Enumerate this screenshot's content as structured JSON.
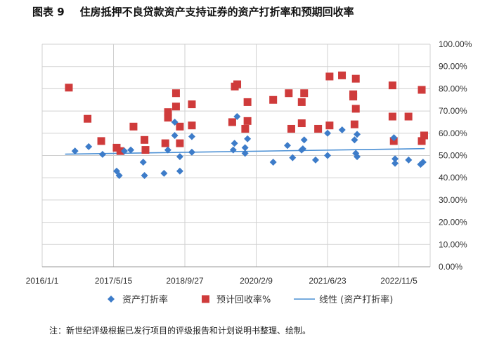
{
  "figure": {
    "label": "图表 9",
    "title": "住房抵押不良贷款资产支持证券的资产打折率和预期回收率",
    "note": "注：新世纪评级根据已发行项目的评级报告和计划说明书整理、绘制。"
  },
  "colors": {
    "discount": "#3d7cc9",
    "recovery": "#cf3b3b",
    "trend": "#4a8fd4",
    "grid": "#d0d0d0",
    "axis": "#9a9a9a"
  },
  "chart_data": {
    "type": "scatter",
    "x_axis": {
      "type": "date",
      "range": [
        "2016-01-01",
        "2023-06-12"
      ],
      "tick_labels": [
        "2016/1/1",
        "2017/5/15",
        "2018/9/27",
        "2020/2/9",
        "2021/6/23",
        "2022/11/5"
      ],
      "tick_dates": [
        "2016-01-01",
        "2017-05-15",
        "2018-09-27",
        "2020-02-09",
        "2021-06-23",
        "2022-11-05"
      ]
    },
    "y_axis": {
      "range": [
        0,
        1
      ],
      "position": "right",
      "tick_values": [
        0,
        0.1,
        0.2,
        0.3,
        0.4,
        0.5,
        0.6,
        0.7,
        0.8,
        0.9,
        1.0
      ],
      "tick_labels": [
        "0.00%",
        "10.00%",
        "20.00%",
        "30.00%",
        "40.00%",
        "50.00%",
        "60.00%",
        "70.00%",
        "80.00%",
        "90.00%",
        "100.00%"
      ]
    },
    "grid": true,
    "legend_position": "bottom",
    "series": [
      {
        "name": "资产打折率",
        "marker": "diamond",
        "points": [
          [
            "2016-08-18",
            0.52
          ],
          [
            "2016-11-22",
            0.54
          ],
          [
            "2017-02-27",
            0.505
          ],
          [
            "2017-06-06",
            0.43
          ],
          [
            "2017-06-24",
            0.41
          ],
          [
            "2017-07-30",
            0.52
          ],
          [
            "2017-09-13",
            0.525
          ],
          [
            "2017-12-09",
            0.47
          ],
          [
            "2017-12-18",
            0.41
          ],
          [
            "2018-05-04",
            0.42
          ],
          [
            "2018-05-31",
            0.525
          ],
          [
            "2018-07-18",
            0.65
          ],
          [
            "2018-07-18",
            0.59
          ],
          [
            "2018-08-23",
            0.495
          ],
          [
            "2018-08-23",
            0.43
          ],
          [
            "2018-11-15",
            0.515
          ],
          [
            "2018-11-15",
            0.585
          ],
          [
            "2019-09-01",
            0.525
          ],
          [
            "2019-09-10",
            0.555
          ],
          [
            "2019-09-28",
            0.675
          ],
          [
            "2019-11-23",
            0.51
          ],
          [
            "2019-11-23",
            0.535
          ],
          [
            "2019-12-10",
            0.575
          ],
          [
            "2020-06-07",
            0.47
          ],
          [
            "2020-09-15",
            0.545
          ],
          [
            "2020-10-21",
            0.49
          ],
          [
            "2020-12-23",
            0.525
          ],
          [
            "2021-01-10",
            0.57
          ],
          [
            "2021-01-01",
            0.53
          ],
          [
            "2021-03-31",
            0.48
          ],
          [
            "2021-06-23",
            0.6
          ],
          [
            "2021-06-23",
            0.5
          ],
          [
            "2021-10-03",
            0.615
          ],
          [
            "2021-12-29",
            0.57
          ],
          [
            "2022-01-07",
            0.51
          ],
          [
            "2022-01-16",
            0.495
          ],
          [
            "2022-01-16",
            0.595
          ],
          [
            "2022-10-01",
            0.58
          ],
          [
            "2022-10-09",
            0.485
          ],
          [
            "2022-10-09",
            0.465
          ],
          [
            "2023-01-12",
            0.48
          ],
          [
            "2023-04-06",
            0.46
          ],
          [
            "2023-04-23",
            0.47
          ]
        ]
      },
      {
        "name": "预计回收率%",
        "marker": "square",
        "points": [
          [
            "2016-07-06",
            0.805
          ],
          [
            "2016-11-14",
            0.665
          ],
          [
            "2017-02-18",
            0.565
          ],
          [
            "2017-06-06",
            0.535
          ],
          [
            "2017-07-02",
            0.52
          ],
          [
            "2017-10-02",
            0.63
          ],
          [
            "2017-12-18",
            0.57
          ],
          [
            "2017-12-25",
            0.525
          ],
          [
            "2018-05-13",
            0.555
          ],
          [
            "2018-06-01",
            0.695
          ],
          [
            "2018-06-01",
            0.67
          ],
          [
            "2018-07-27",
            0.78
          ],
          [
            "2018-07-27",
            0.72
          ],
          [
            "2018-08-23",
            0.63
          ],
          [
            "2018-08-23",
            0.555
          ],
          [
            "2018-11-15",
            0.73
          ],
          [
            "2018-11-15",
            0.635
          ],
          [
            "2019-08-25",
            0.65
          ],
          [
            "2019-09-12",
            0.81
          ],
          [
            "2019-09-29",
            0.82
          ],
          [
            "2019-11-24",
            0.62
          ],
          [
            "2019-12-10",
            0.74
          ],
          [
            "2019-12-10",
            0.655
          ],
          [
            "2020-06-07",
            0.75
          ],
          [
            "2020-09-24",
            0.78
          ],
          [
            "2020-10-12",
            0.62
          ],
          [
            "2020-12-24",
            0.74
          ],
          [
            "2020-12-24",
            0.645
          ],
          [
            "2021-01-10",
            0.78
          ],
          [
            "2021-04-18",
            0.62
          ],
          [
            "2021-07-07",
            0.855
          ],
          [
            "2021-07-07",
            0.635
          ],
          [
            "2021-10-02",
            0.86
          ],
          [
            "2021-12-20",
            0.775
          ],
          [
            "2021-12-20",
            0.765
          ],
          [
            "2021-12-29",
            0.64
          ],
          [
            "2022-01-07",
            0.845
          ],
          [
            "2022-01-07",
            0.71
          ],
          [
            "2022-09-21",
            0.815
          ],
          [
            "2022-09-21",
            0.675
          ],
          [
            "2022-09-30",
            0.565
          ],
          [
            "2023-01-11",
            0.675
          ],
          [
            "2023-04-14",
            0.795
          ],
          [
            "2023-04-14",
            0.565
          ],
          [
            "2023-05-01",
            0.59
          ]
        ]
      },
      {
        "name": "线性 (资产打折率)",
        "type": "line",
        "points": [
          [
            "2016-06-10",
            0.506
          ],
          [
            "2023-05-05",
            0.531
          ]
        ]
      }
    ]
  }
}
